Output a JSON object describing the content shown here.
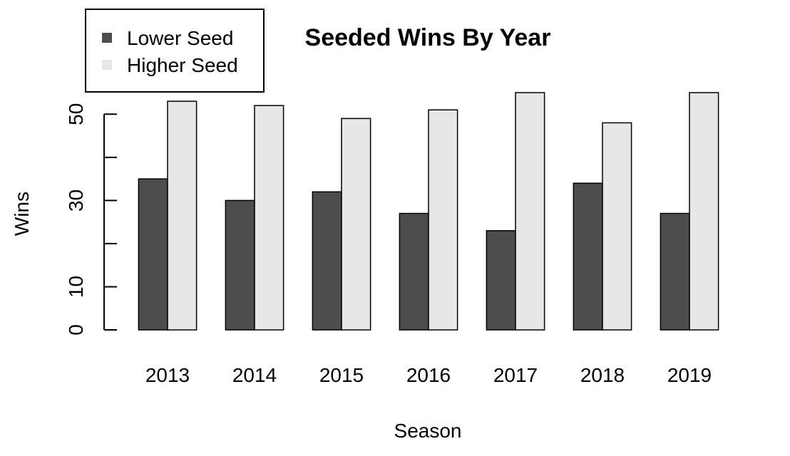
{
  "chart_data": {
    "type": "bar",
    "title": "Seeded Wins By Year",
    "xlabel": "Season",
    "ylabel": "Wins",
    "categories": [
      "2013",
      "2014",
      "2015",
      "2016",
      "2017",
      "2018",
      "2019"
    ],
    "series": [
      {
        "name": "Lower Seed",
        "color": "#4d4d4d",
        "values": [
          35,
          30,
          32,
          27,
          23,
          34,
          27
        ]
      },
      {
        "name": "Higher Seed",
        "color": "#e6e6e6",
        "values": [
          53,
          52,
          49,
          51,
          55,
          48,
          55
        ]
      }
    ],
    "ylim": [
      0,
      55
    ],
    "y_ticks": [
      0,
      10,
      20,
      30,
      40,
      50
    ],
    "y_tick_labels": [
      "0",
      "10",
      "",
      "30",
      "",
      "50"
    ],
    "grid": false,
    "legend_position": "top-left",
    "bar_layout": "grouped",
    "bar_outline_color": "#000000"
  }
}
